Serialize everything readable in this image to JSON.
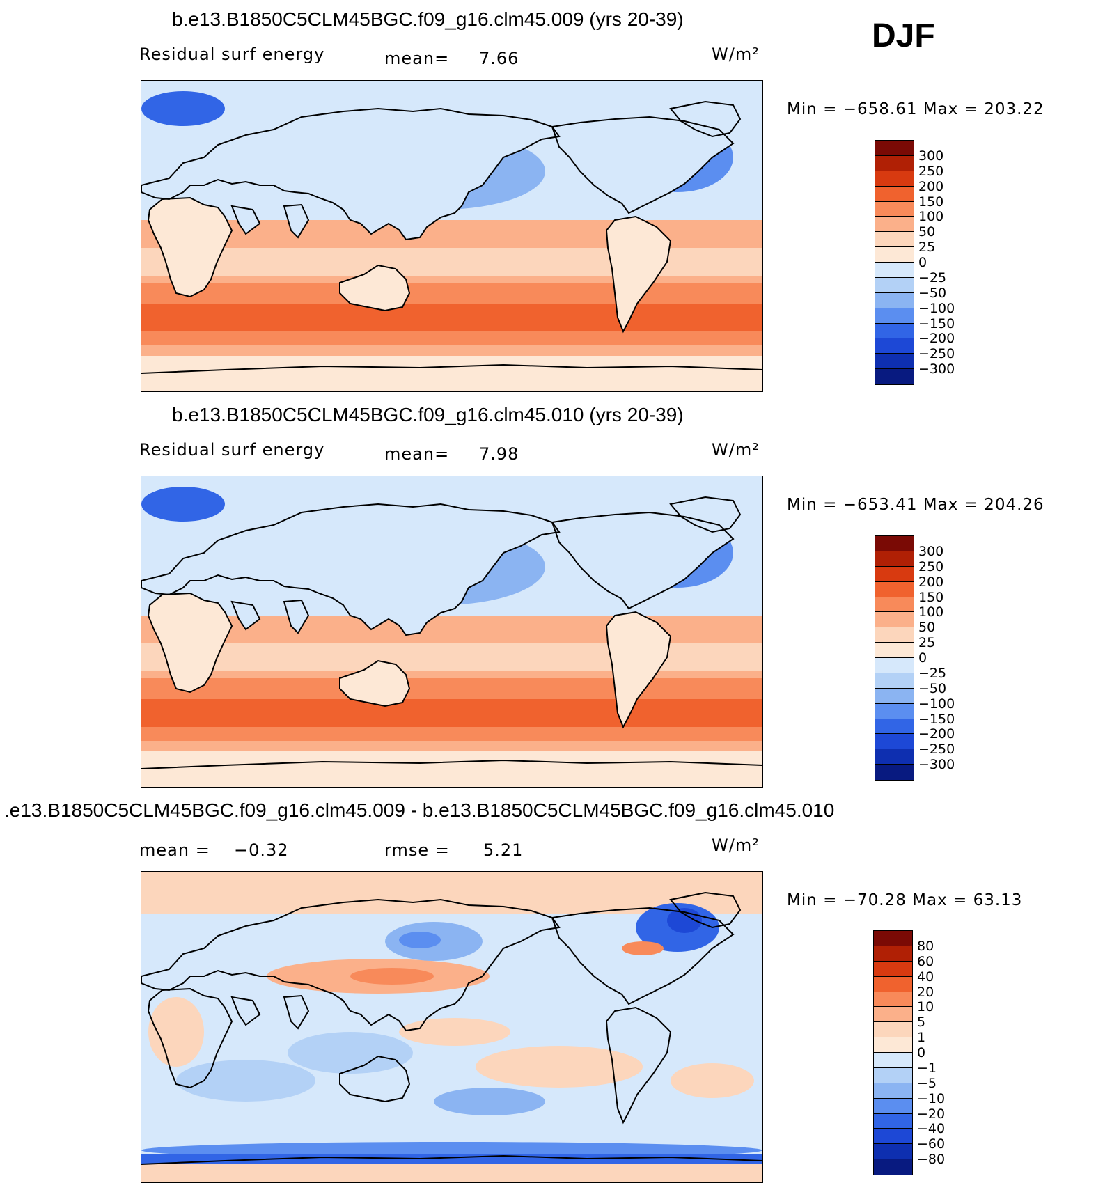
{
  "season": "DJF",
  "panels": [
    {
      "title": "b.e13.B1850C5CLM45BGC.f09_g16.clm45.009 (yrs 20-39)",
      "left_label": "Residual surf energy",
      "mid_label": "mean=",
      "mid_value": "7.66",
      "units": "W/m²",
      "minmax": "Min = −658.61 Max = 203.22",
      "colorbar": {
        "labels": [
          "300",
          "250",
          "200",
          "150",
          "100",
          "50",
          "25",
          "0",
          "−25",
          "−50",
          "−100",
          "−150",
          "−200",
          "−250",
          "−300"
        ],
        "colors": [
          "#7a0a05",
          "#b02005",
          "#d83a10",
          "#f0622e",
          "#f88a5a",
          "#fbb08a",
          "#fcd6bc",
          "#fde8d6",
          "#d6e8fb",
          "#b3d1f6",
          "#8bb4f2",
          "#5b8ef0",
          "#3165e6",
          "#1d48d6",
          "#0e2fb0",
          "#081a80"
        ]
      },
      "map_style": "absolute"
    },
    {
      "title": "b.e13.B1850C5CLM45BGC.f09_g16.clm45.010 (yrs 20-39)",
      "left_label": "Residual surf energy",
      "mid_label": "mean=",
      "mid_value": "7.98",
      "units": "W/m²",
      "minmax": "Min = −653.41 Max = 204.26",
      "colorbar": {
        "labels": [
          "300",
          "250",
          "200",
          "150",
          "100",
          "50",
          "25",
          "0",
          "−25",
          "−50",
          "−100",
          "−150",
          "−200",
          "−250",
          "−300"
        ],
        "colors": [
          "#7a0a05",
          "#b02005",
          "#d83a10",
          "#f0622e",
          "#f88a5a",
          "#fbb08a",
          "#fcd6bc",
          "#fde8d6",
          "#d6e8fb",
          "#b3d1f6",
          "#8bb4f2",
          "#5b8ef0",
          "#3165e6",
          "#1d48d6",
          "#0e2fb0",
          "#081a80"
        ]
      },
      "map_style": "absolute"
    },
    {
      "title": ".e13.B1850C5CLM45BGC.f09_g16.clm45.009 - b.e13.B1850C5CLM45BGC.f09_g16.clm45.010",
      "left_label": "mean =",
      "left_value": "−0.32",
      "mid_label": "rmse =",
      "mid_value": "5.21",
      "units": "W/m²",
      "minmax": "Min = −70.28 Max = 63.13",
      "colorbar": {
        "labels": [
          "80",
          "60",
          "40",
          "20",
          "10",
          "5",
          "1",
          "0",
          "−1",
          "−5",
          "−10",
          "−20",
          "−40",
          "−60",
          "−80"
        ],
        "colors": [
          "#7a0a05",
          "#b02005",
          "#d83a10",
          "#f0622e",
          "#f88a5a",
          "#fbb08a",
          "#fcd6bc",
          "#fde8d6",
          "#d6e8fb",
          "#b3d1f6",
          "#8bb4f2",
          "#5b8ef0",
          "#3165e6",
          "#1d48d6",
          "#0e2fb0",
          "#081a80"
        ]
      },
      "map_style": "difference"
    }
  ]
}
